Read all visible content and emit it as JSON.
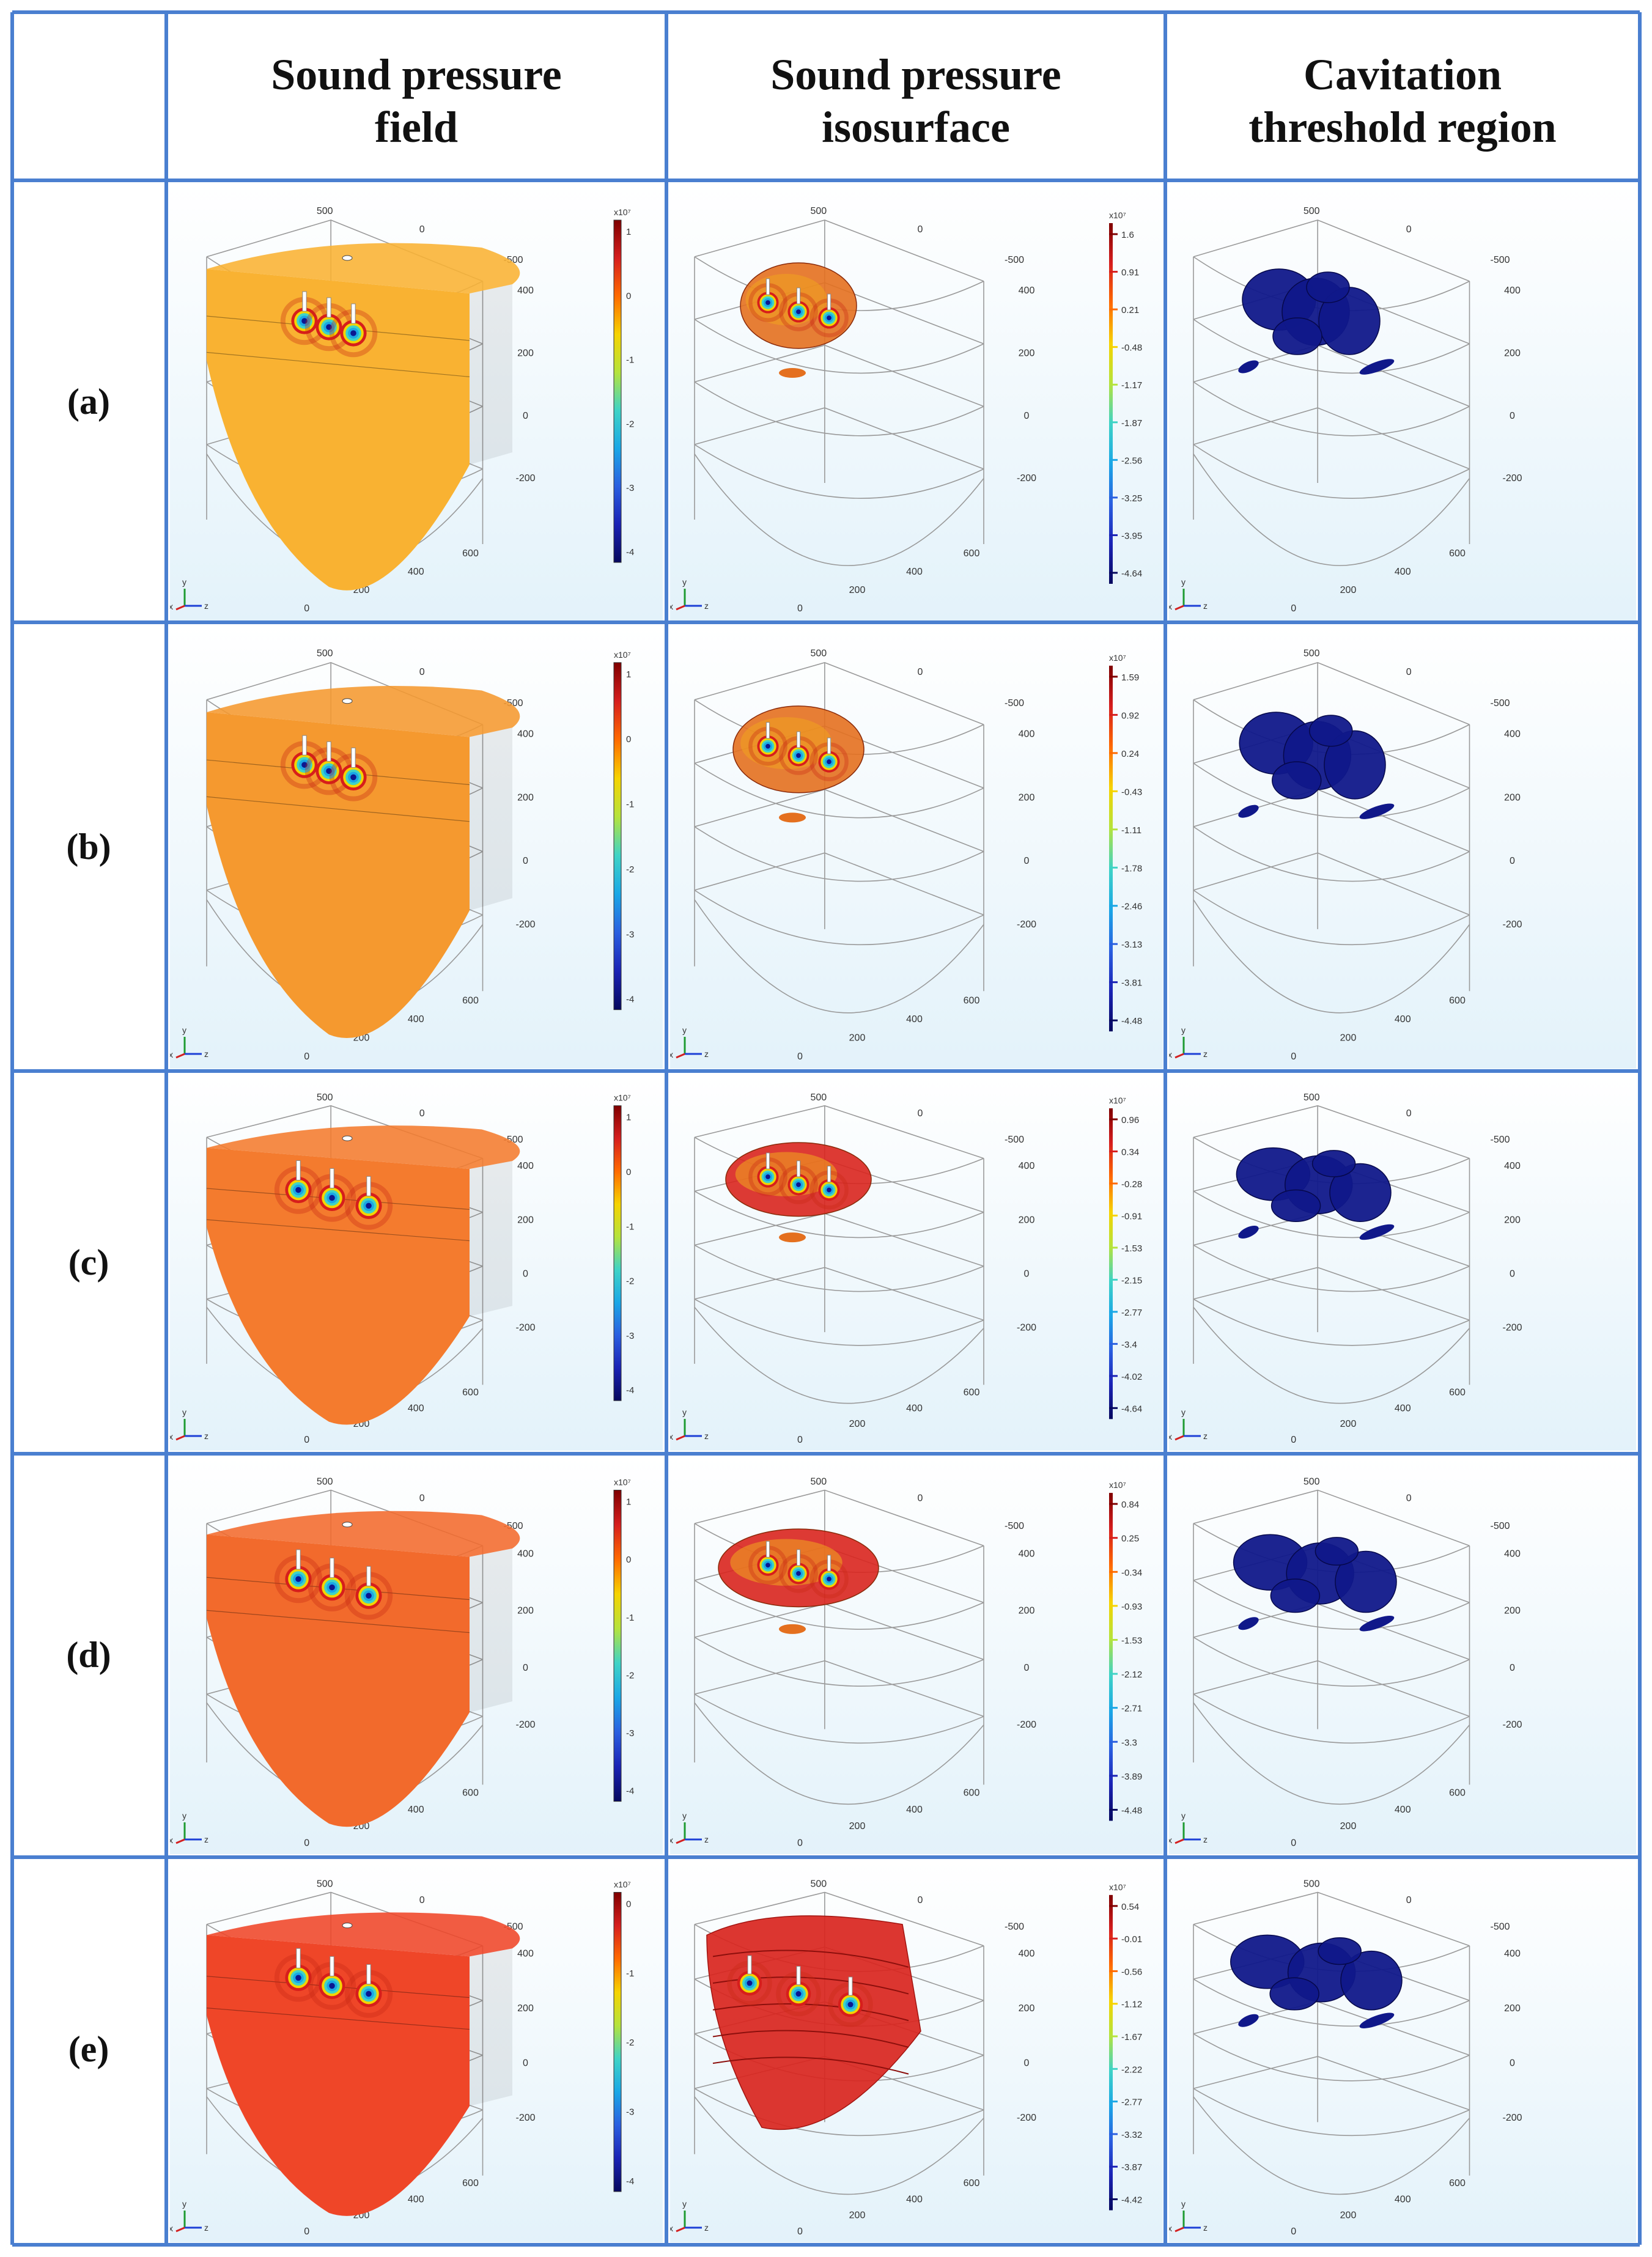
{
  "headers": [
    "Sound pressure\nfield",
    "Sound pressure\nisosurface",
    "Cavitation\nthreshold region"
  ],
  "rows": [
    {
      "label": "(a)",
      "field_color": "#F9B232",
      "field_scale": {
        "exponent": "x10⁷",
        "ticks": [
          "1",
          "0",
          "-1",
          "-2",
          "-3",
          "-4"
        ]
      },
      "iso_scale": {
        "exponent": "x10⁷",
        "ticks": [
          "1.6",
          "0.91",
          "0.21",
          "-0.48",
          "-1.17",
          "-1.87",
          "-2.56",
          "-3.25",
          "-3.95",
          "-4.64"
        ]
      },
      "axis_ticks": {
        "top": "500",
        "mid": "0",
        "right": "-500",
        "yvals": [
          "400",
          "200",
          "0",
          "-200"
        ],
        "depth": [
          "600",
          "400",
          "200",
          "0"
        ]
      }
    },
    {
      "label": "(b)",
      "field_color": "#F5992F",
      "field_scale": {
        "exponent": "x10⁷",
        "ticks": [
          "1",
          "0",
          "-1",
          "-2",
          "-3",
          "-4"
        ]
      },
      "iso_scale": {
        "exponent": "x10⁷",
        "ticks": [
          "1.59",
          "0.92",
          "0.24",
          "-0.43",
          "-1.11",
          "-1.78",
          "-2.46",
          "-3.13",
          "-3.81",
          "-4.48"
        ]
      },
      "axis_ticks": {
        "top": "500",
        "mid": "0",
        "right": "-500",
        "yvals": [
          "400",
          "200",
          "0",
          "-200"
        ],
        "depth": [
          "600",
          "400",
          "200",
          "0"
        ]
      }
    },
    {
      "label": "(c)",
      "field_color": "#F47B2E",
      "field_scale": {
        "exponent": "x10⁷",
        "ticks": [
          "1",
          "0",
          "-1",
          "-2",
          "-3",
          "-4"
        ]
      },
      "iso_scale": {
        "exponent": "x10⁷",
        "ticks": [
          "0.96",
          "0.34",
          "-0.28",
          "-0.91",
          "-1.53",
          "-2.15",
          "-2.77",
          "-3.4",
          "-4.02",
          "-4.64"
        ]
      },
      "axis_ticks": {
        "top": "500",
        "mid": "0",
        "right": "-500",
        "yvals": [
          "400",
          "200",
          "0",
          "-200"
        ],
        "depth": [
          "600",
          "400",
          "200",
          "0"
        ]
      }
    },
    {
      "label": "(d)",
      "field_color": "#F26A2C",
      "field_scale": {
        "exponent": "x10⁷",
        "ticks": [
          "1",
          "0",
          "-1",
          "-2",
          "-3",
          "-4"
        ]
      },
      "iso_scale": {
        "exponent": "x10⁷",
        "ticks": [
          "0.84",
          "0.25",
          "-0.34",
          "-0.93",
          "-1.53",
          "-2.12",
          "-2.71",
          "-3.3",
          "-3.89",
          "-4.48"
        ]
      },
      "axis_ticks": {
        "top": "500",
        "mid": "0",
        "right": "-500",
        "yvals": [
          "400",
          "200",
          "0",
          "-200"
        ],
        "depth": [
          "600",
          "400",
          "200",
          "0"
        ]
      }
    },
    {
      "label": "(e)",
      "field_color": "#EF4628",
      "field_scale": {
        "exponent": "x10⁷",
        "ticks": [
          "0",
          "-1",
          "-2",
          "-3",
          "-4"
        ]
      },
      "iso_scale": {
        "exponent": "x10⁷",
        "ticks": [
          "0.54",
          "-0.01",
          "-0.56",
          "-1.12",
          "-1.67",
          "-2.22",
          "-2.77",
          "-3.32",
          "-3.87",
          "-4.42"
        ]
      },
      "axis_ticks": {
        "top": "500",
        "mid": "0",
        "right": "-500",
        "yvals": [
          "400",
          "200",
          "0",
          "-200"
        ],
        "depth": [
          "600",
          "400",
          "200",
          "0"
        ]
      }
    }
  ],
  "colors": {
    "grid_line": "#4A7FD0",
    "cavitation": "#10188A",
    "iso_red": "#D9251E",
    "iso_orange": "#E4701F"
  },
  "triad": {
    "x": "x",
    "y": "y",
    "z": "z"
  }
}
